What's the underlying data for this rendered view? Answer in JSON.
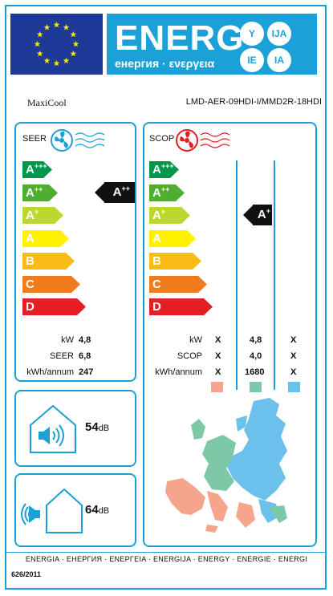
{
  "header": {
    "energy_word": "ENERG",
    "energy_subtitle": "енергия · ενεργεια",
    "languages": [
      "Y",
      "IJA",
      "IE",
      "IA"
    ]
  },
  "product": {
    "brand": "MaxiCool",
    "model": "LMD-AER-09HDI-I/MMD2R-18HDI"
  },
  "cooling": {
    "title": "SEER",
    "classes": [
      {
        "base": "A",
        "sup": "+++",
        "color": "#00964b"
      },
      {
        "base": "A",
        "sup": "++",
        "color": "#4fae32"
      },
      {
        "base": "A",
        "sup": "+",
        "color": "#bed630"
      },
      {
        "base": "A",
        "sup": "",
        "color": "#fff100"
      },
      {
        "base": "B",
        "sup": "",
        "color": "#f9bb15"
      },
      {
        "base": "C",
        "sup": "",
        "color": "#f07b1d"
      },
      {
        "base": "D",
        "sup": "",
        "color": "#e31e24"
      }
    ],
    "rating": {
      "base": "A",
      "sup": "++"
    },
    "rows": [
      {
        "label": "kW",
        "value": "4,8"
      },
      {
        "label": "SEER",
        "value": "6,8"
      },
      {
        "label": "kWh/annum",
        "value": "247"
      }
    ]
  },
  "heating": {
    "title": "SCOP",
    "classes": [
      {
        "base": "A",
        "sup": "+++",
        "color": "#00964b"
      },
      {
        "base": "A",
        "sup": "++",
        "color": "#4fae32"
      },
      {
        "base": "A",
        "sup": "+",
        "color": "#bed630"
      },
      {
        "base": "A",
        "sup": "",
        "color": "#fff100"
      },
      {
        "base": "B",
        "sup": "",
        "color": "#f9bb15"
      },
      {
        "base": "C",
        "sup": "",
        "color": "#f07b1d"
      },
      {
        "base": "D",
        "sup": "",
        "color": "#e31e24"
      }
    ],
    "rating": {
      "base": "A",
      "sup": "+"
    },
    "rows": [
      {
        "label": "kW",
        "warmer": "X",
        "average": "4,8",
        "colder": "X"
      },
      {
        "label": "SCOP",
        "warmer": "X",
        "average": "4,0",
        "colder": "X"
      },
      {
        "label": "kWh/annum",
        "warmer": "X",
        "average": "1680",
        "colder": "X"
      }
    ],
    "zone_colors": {
      "warmer": "#f5a58b",
      "average": "#7dc9a5",
      "colder": "#6cc0ec"
    }
  },
  "noise": {
    "indoor": {
      "value": "54",
      "unit": "dB"
    },
    "outdoor": {
      "value": "64",
      "unit": "dB"
    }
  },
  "footer": {
    "languages": "ENERGIA · ЕНЕРГИЯ · ΕΝΕΡΓΕΙΑ · ENERGIJA · ENERGY · ENERGIE · ENERGI",
    "regulation": "626/2011"
  },
  "colors": {
    "accent": "#1ba1d8",
    "eu_blue": "#1e3a99",
    "star": "#ffe600"
  }
}
